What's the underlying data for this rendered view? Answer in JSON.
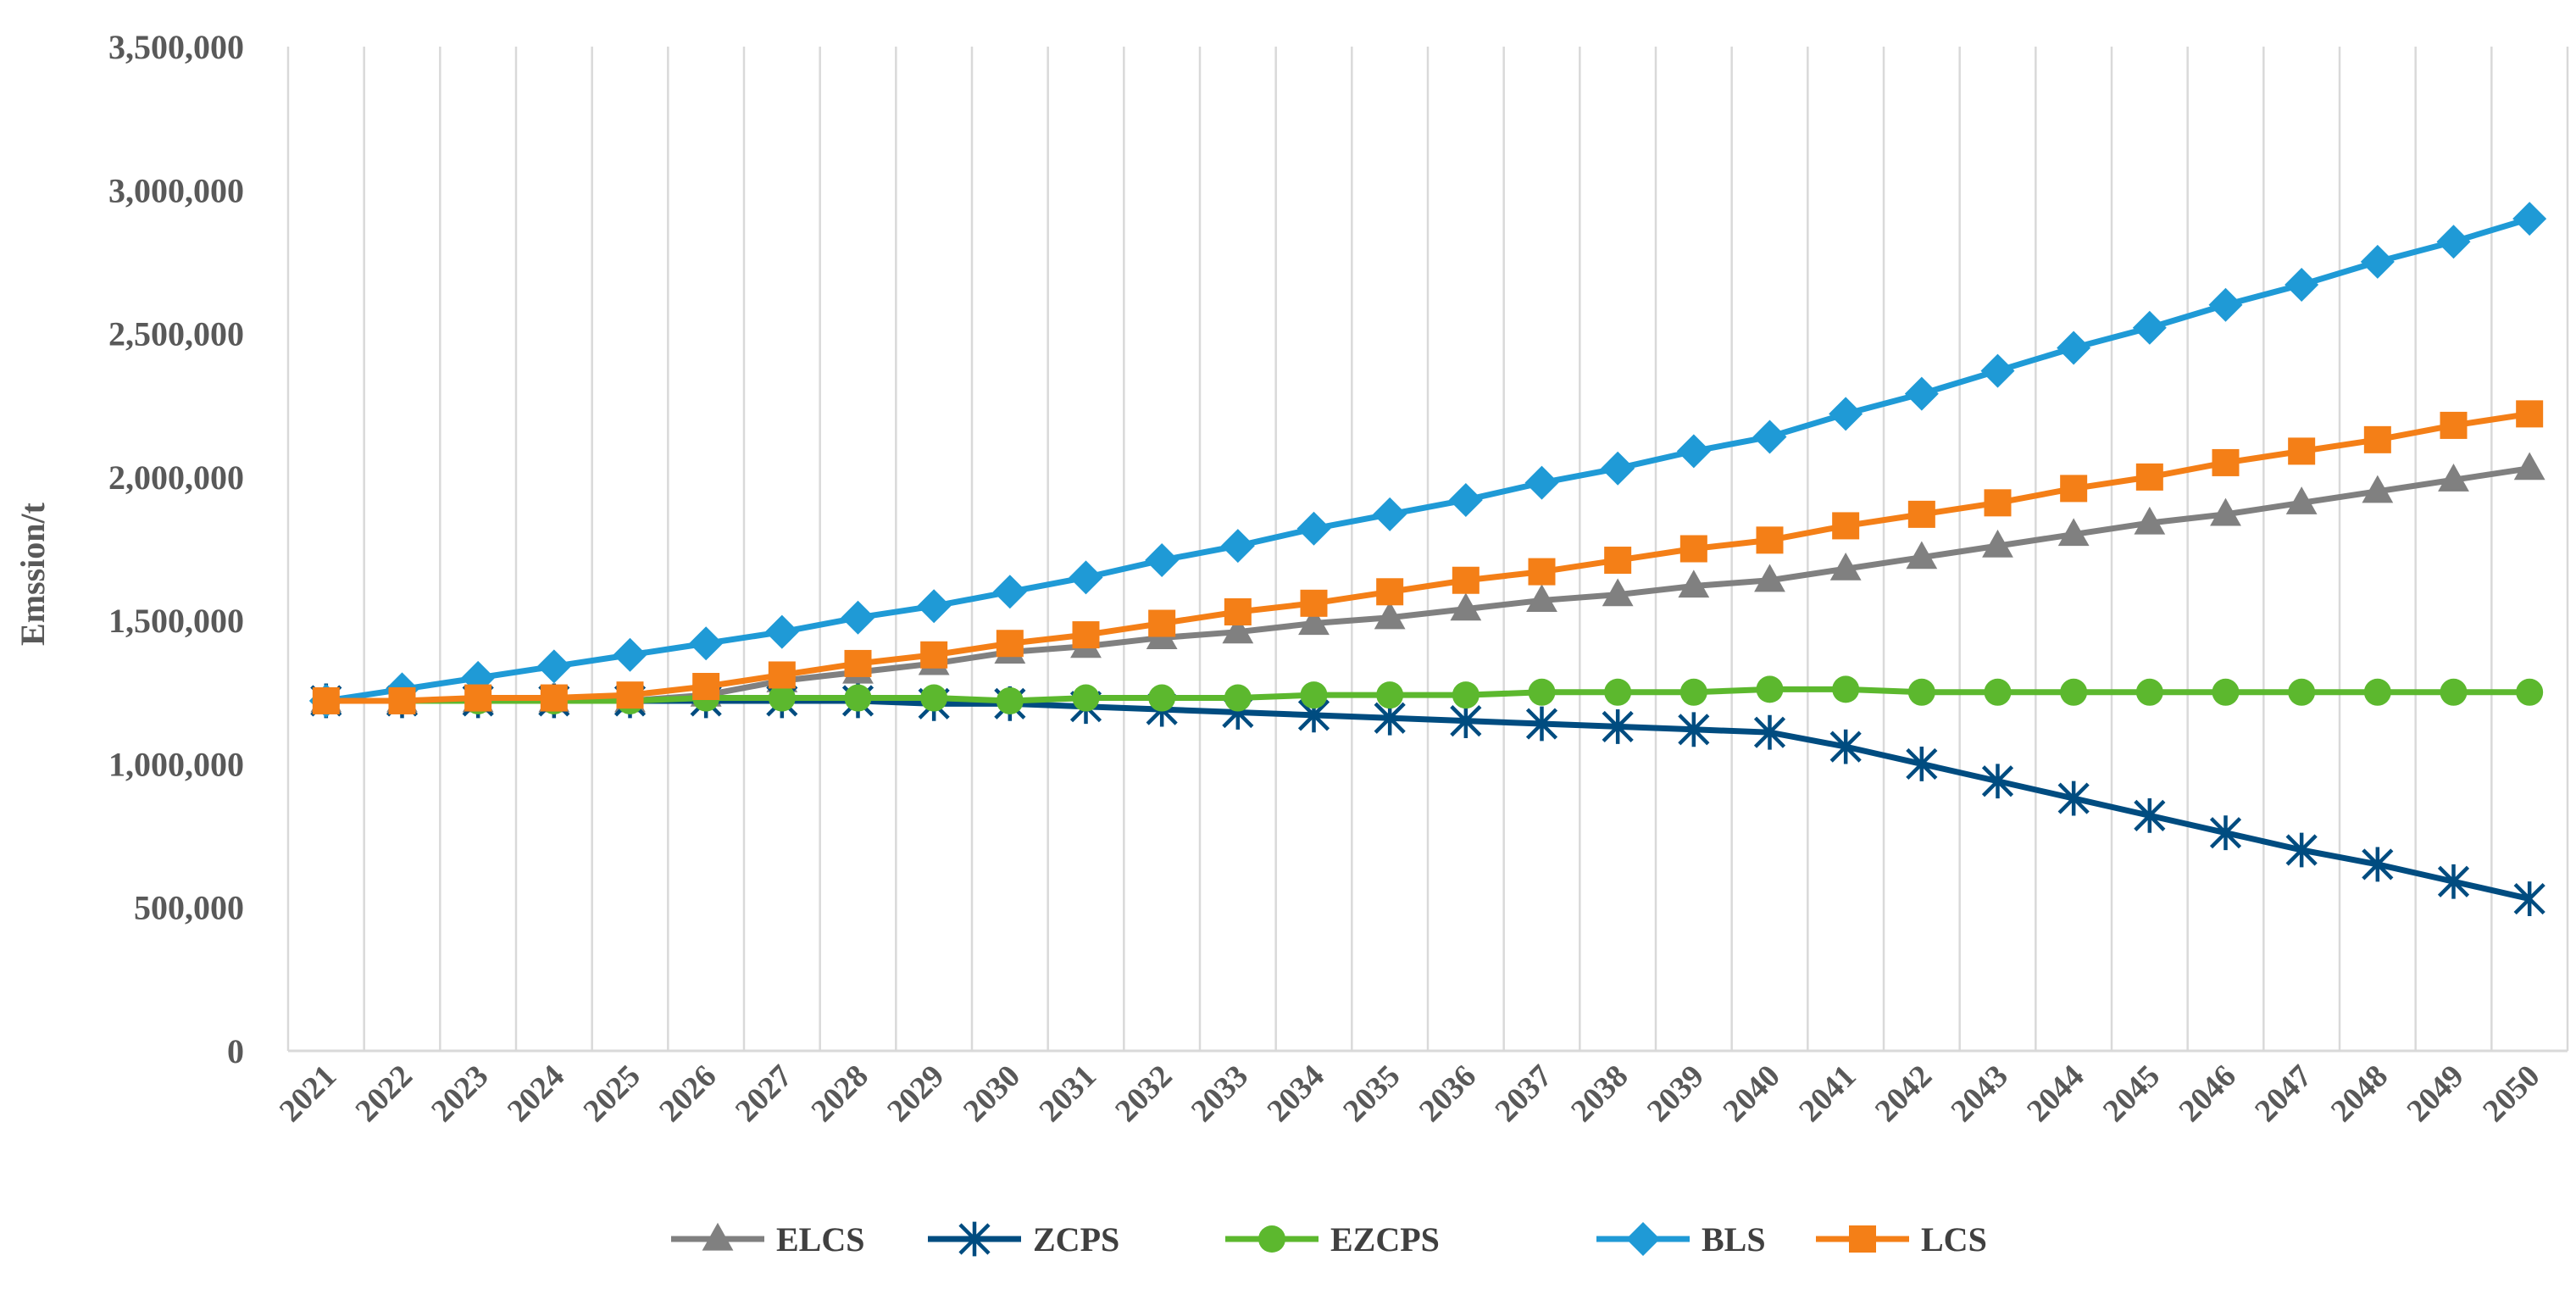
{
  "chart_data": {
    "type": "line",
    "title": "",
    "xlabel": "",
    "ylabel": "Emssion/t",
    "ylim": [
      0,
      3500000
    ],
    "yticks": [
      0,
      500000,
      1000000,
      1500000,
      2000000,
      2500000,
      3000000,
      3500000
    ],
    "ytick_labels": [
      "0",
      "500,000",
      "1,000,000",
      "1,500,000",
      "2,000,000",
      "2,500,000",
      "3,000,000",
      "3,500,000"
    ],
    "grid": "vertical",
    "legend_position": "bottom",
    "categories": [
      "2021",
      "2022",
      "2023",
      "2024",
      "2025",
      "2026",
      "2027",
      "2028",
      "2029",
      "2030",
      "2031",
      "2032",
      "2033",
      "2034",
      "2035",
      "2036",
      "2037",
      "2038",
      "2039",
      "2040",
      "2041",
      "2042",
      "2043",
      "2044",
      "2045",
      "2046",
      "2047",
      "2048",
      "2049",
      "2050"
    ],
    "series": [
      {
        "name": "ELCS",
        "color": "#808080",
        "marker": "triangle",
        "values": [
          1220000,
          1220000,
          1220000,
          1220000,
          1220000,
          1240000,
          1290000,
          1320000,
          1350000,
          1390000,
          1410000,
          1440000,
          1460000,
          1490000,
          1510000,
          1540000,
          1570000,
          1590000,
          1620000,
          1640000,
          1680000,
          1720000,
          1760000,
          1800000,
          1840000,
          1870000,
          1910000,
          1950000,
          1990000,
          2030000
        ]
      },
      {
        "name": "ZCPS",
        "color": "#004c80",
        "marker": "star",
        "values": [
          1220000,
          1220000,
          1220000,
          1220000,
          1220000,
          1220000,
          1220000,
          1220000,
          1210000,
          1210000,
          1200000,
          1190000,
          1180000,
          1170000,
          1160000,
          1150000,
          1140000,
          1130000,
          1120000,
          1110000,
          1060000,
          1000000,
          940000,
          880000,
          820000,
          760000,
          700000,
          650000,
          590000,
          530000
        ]
      },
      {
        "name": "EZCPS",
        "color": "#5cb82e",
        "marker": "circle",
        "values": [
          1220000,
          1220000,
          1220000,
          1220000,
          1220000,
          1230000,
          1230000,
          1230000,
          1230000,
          1220000,
          1230000,
          1230000,
          1230000,
          1240000,
          1240000,
          1240000,
          1250000,
          1250000,
          1250000,
          1260000,
          1260000,
          1250000,
          1250000,
          1250000,
          1250000,
          1250000,
          1250000,
          1250000,
          1250000,
          1250000
        ]
      },
      {
        "name": "BLS",
        "color": "#1f9ad6",
        "marker": "diamond",
        "values": [
          1220000,
          1260000,
          1300000,
          1340000,
          1380000,
          1420000,
          1460000,
          1510000,
          1550000,
          1600000,
          1650000,
          1710000,
          1760000,
          1820000,
          1870000,
          1920000,
          1980000,
          2030000,
          2090000,
          2140000,
          2220000,
          2290000,
          2370000,
          2450000,
          2520000,
          2600000,
          2670000,
          2750000,
          2820000,
          2900000
        ]
      },
      {
        "name": "LCS",
        "color": "#f47f17",
        "marker": "square",
        "values": [
          1220000,
          1220000,
          1230000,
          1230000,
          1240000,
          1270000,
          1310000,
          1350000,
          1380000,
          1420000,
          1450000,
          1490000,
          1530000,
          1560000,
          1600000,
          1640000,
          1670000,
          1710000,
          1750000,
          1780000,
          1830000,
          1870000,
          1910000,
          1960000,
          2000000,
          2050000,
          2090000,
          2130000,
          2180000,
          2220000
        ]
      }
    ]
  }
}
